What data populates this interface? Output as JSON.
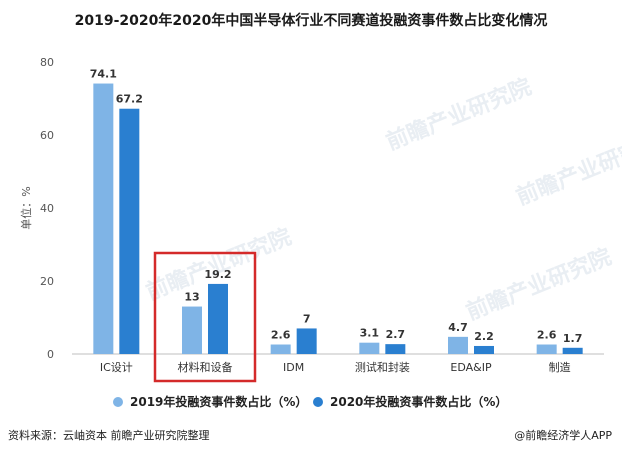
{
  "chart_data": {
    "type": "bar",
    "title": "2019-2020年2020年中国半导体行业不同赛道投融资事件数占比变化情况",
    "ylabel": "单位：%",
    "xlabel": "",
    "ylim": [
      0,
      80
    ],
    "yticks": [
      0,
      20,
      40,
      60,
      80
    ],
    "grid": false,
    "legend_position": "bottom",
    "categories": [
      "IC设计",
      "材料和设备",
      "IDM",
      "测试和封装",
      "EDA&IP",
      "制造"
    ],
    "series": [
      {
        "name": "2019年投融资事件数占比（%）",
        "color": "#7fb4e6",
        "values": [
          74.1,
          13,
          2.6,
          3.1,
          4.7,
          2.6
        ],
        "labels": [
          "74.1",
          "13",
          "2.6",
          "3.1",
          "4.7",
          "2.6"
        ]
      },
      {
        "name": "2020年投融资事件数占比（%）",
        "color": "#2a7fd0",
        "values": [
          67.2,
          19.2,
          7,
          2.7,
          2.2,
          1.7
        ],
        "labels": [
          "67.2",
          "19.2",
          "7",
          "2.7",
          "2.2",
          "1.7"
        ]
      }
    ],
    "highlight_category": "材料和设备",
    "highlight_color": "#d42a2a"
  },
  "footer": {
    "source": "资料来源：云岫资本 前瞻产业研究院整理",
    "brand": "@前瞻经济学人APP"
  },
  "watermark": "前瞻产业研究院"
}
